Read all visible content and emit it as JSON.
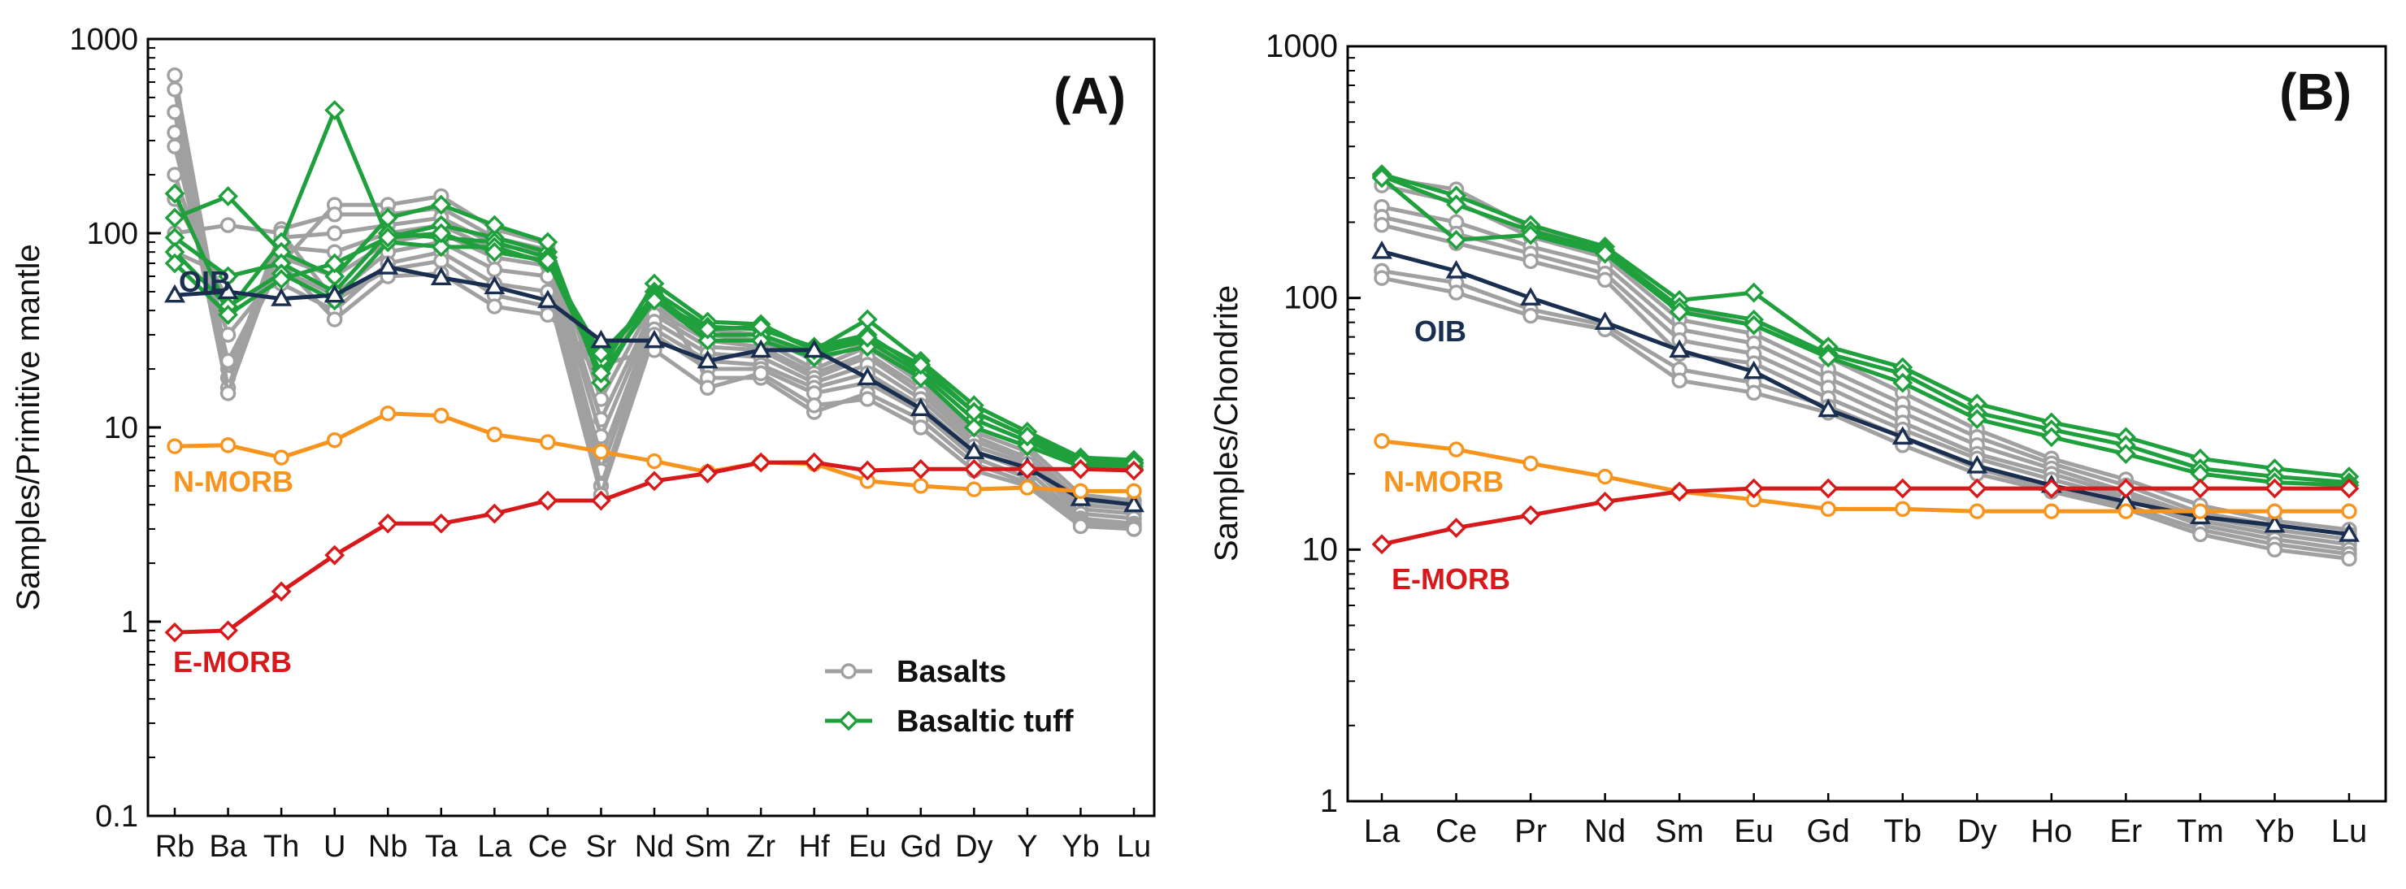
{
  "chart_data": [
    {
      "type": "line",
      "panel_label": "(A)",
      "ylabel": "Samples/Primitive mantle",
      "yscale": "log",
      "ylim": [
        0.1,
        1000
      ],
      "ytick_labels": [
        "0.1",
        "1",
        "10",
        "100",
        "1000"
      ],
      "categories": [
        "Rb",
        "Ba",
        "Th",
        "U",
        "Nb",
        "Ta",
        "La",
        "Ce",
        "Sr",
        "Nd",
        "Sm",
        "Zr",
        "Hf",
        "Eu",
        "Gd",
        "Dy",
        "Y",
        "Yb",
        "Lu"
      ],
      "reference_series": [
        {
          "name": "OIB",
          "label": "OIB",
          "color": "#1a2e50",
          "marker": "triangle",
          "values": [
            48,
            50,
            46,
            48,
            67,
            59,
            53,
            45,
            28,
            28,
            22,
            25,
            25,
            18,
            12.5,
            7.5,
            6.2,
            4.3,
            4.0
          ]
        },
        {
          "name": "N-MORB",
          "label": "N-MORB",
          "color": "#f7941d",
          "marker": "circle",
          "values": [
            8.0,
            8.1,
            7.0,
            8.6,
            11.8,
            11.5,
            9.2,
            8.4,
            7.5,
            6.7,
            5.9,
            6.6,
            6.5,
            5.3,
            5.0,
            4.8,
            4.9,
            4.7,
            4.7
          ]
        },
        {
          "name": "E-MORB",
          "label": "E-MORB",
          "color": "#d7191c",
          "marker": "diamond",
          "values": [
            0.88,
            0.9,
            1.43,
            2.2,
            3.2,
            3.2,
            3.6,
            4.2,
            4.2,
            5.3,
            5.8,
            6.6,
            6.6,
            6.0,
            6.1,
            6.1,
            6.1,
            6.1,
            6.0
          ]
        }
      ],
      "sample_groups": [
        {
          "name": "Basalts",
          "color": "#a0a0a0",
          "marker": "circle",
          "series": [
            [
              650,
              20,
              70,
              140,
              140,
              155,
              105,
              88,
              14,
              45,
              32,
              30,
              22,
              27,
              18,
              10,
              8,
              4.5,
              4.2
            ],
            [
              550,
              18,
              105,
              125,
              125,
              135,
              95,
              82,
              11,
              42,
              30,
              28,
              20,
              26,
              17,
              9.5,
              7.5,
              4.2,
              4.0
            ],
            [
              420,
              16,
              95,
              100,
              110,
              120,
              88,
              78,
              9,
              40,
              28,
              26,
              19,
              24,
              16,
              9,
              7,
              4.0,
              3.8
            ],
            [
              330,
              15,
              85,
              80,
              100,
              110,
              82,
              72,
              7,
              38,
              26,
              25,
              18,
              23,
              15,
              8.5,
              6.8,
              3.8,
              3.6
            ],
            [
              280,
              22,
              75,
              60,
              90,
              100,
              75,
              68,
              6,
              35,
              24,
              23,
              17,
              21,
              14,
              8,
              6.5,
              3.6,
              3.4
            ],
            [
              200,
              30,
              65,
              48,
              80,
              90,
              65,
              60,
              5,
              32,
              22,
              21,
              16,
              19,
              13,
              7.5,
              6,
              3.4,
              3.2
            ],
            [
              150,
              45,
              55,
              40,
              70,
              80,
              55,
              50,
              4.5,
              30,
              20,
              20,
              15,
              17,
              12,
              7,
              5.5,
              3.3,
              3.1
            ],
            [
              100,
              110,
              100,
              45,
              65,
              72,
              48,
              42,
              18,
              50,
              18,
              18,
              12,
              15,
              11,
              6.5,
              5.2,
              3.2,
              3.0
            ],
            [
              80,
              60,
              70,
              36,
              60,
              62,
              42,
              38,
              21,
              25,
              16,
              19,
              13,
              14,
              10,
              6,
              5,
              3.1,
              3.0
            ]
          ]
        },
        {
          "name": "Basaltic tuff",
          "color": "#1fa03c",
          "marker": "diamond",
          "series": [
            [
              160,
              40,
              90,
              430,
              95,
              110,
              95,
              80,
              20,
              55,
              35,
              34,
              25,
              36,
              22,
              13,
              9.5,
              7,
              6.8
            ],
            [
              120,
              155,
              80,
              60,
              120,
              140,
              110,
              90,
              17,
              50,
              33,
              32,
              26,
              30,
              20,
              12,
              9,
              6.8,
              6.6
            ],
            [
              95,
              60,
              70,
              50,
              100,
              95,
              90,
              75,
              22,
              48,
              30,
              30,
              24,
              28,
              19,
              11,
              8.5,
              6.5,
              6.3
            ],
            [
              80,
              42,
              62,
              45,
              90,
              85,
              85,
              70,
              24,
              46,
              28,
              28,
              23,
              26,
              18,
              10,
              8,
              6.3,
              6.1
            ],
            [
              70,
              38,
              58,
              70,
              95,
              100,
              80,
              72,
              19,
              45,
              32,
              33,
              25,
              29,
              21,
              12,
              9,
              6.6,
              6.5
            ]
          ]
        }
      ],
      "legend": {
        "position": "bottom-right",
        "entries": [
          "Basalts",
          "Basaltic tuff"
        ]
      }
    },
    {
      "type": "line",
      "panel_label": "(B)",
      "ylabel": "Samples/Chondrite",
      "yscale": "log",
      "ylim": [
        1,
        1000
      ],
      "ytick_labels": [
        "1",
        "10",
        "100",
        "1000"
      ],
      "categories": [
        "La",
        "Ce",
        "Pr",
        "Nd",
        "Sm",
        "Eu",
        "Gd",
        "Tb",
        "Dy",
        "Ho",
        "Er",
        "Tm",
        "Yb",
        "Lu"
      ],
      "reference_series": [
        {
          "name": "OIB",
          "label": "OIB",
          "color": "#1a2e50",
          "marker": "triangle",
          "values": [
            153,
            128,
            100,
            80,
            62,
            51,
            36,
            28,
            21.5,
            18,
            15.5,
            13.5,
            12.5,
            11.5
          ]
        },
        {
          "name": "N-MORB",
          "label": "N-MORB",
          "color": "#f7941d",
          "marker": "circle",
          "values": [
            27,
            25,
            22,
            19.5,
            17,
            15.8,
            14.5,
            14.5,
            14.2,
            14.2,
            14.2,
            14.2,
            14.2,
            14.2
          ]
        },
        {
          "name": "E-MORB",
          "label": "E-MORB",
          "color": "#d7191c",
          "marker": "diamond",
          "values": [
            10.5,
            12.2,
            13.7,
            15.5,
            17,
            17.5,
            17.5,
            17.5,
            17.5,
            17.5,
            17.5,
            17.5,
            17.5,
            17.5
          ]
        }
      ],
      "sample_groups": [
        {
          "name": "Basalts",
          "color": "#a0a0a0",
          "marker": "circle",
          "series": [
            [
              300,
              270,
              190,
              155,
              90,
              78,
              58,
              42,
              30,
              23,
              19,
              15,
              13,
              12
            ],
            [
              280,
              240,
              175,
              145,
              82,
              72,
              52,
              38,
              28,
              22,
              18,
              14,
              12.5,
              11.5
            ],
            [
              230,
              200,
              160,
              135,
              75,
              66,
              48,
              35,
              26,
              21,
              17,
              13.5,
              12,
              11
            ],
            [
              210,
              180,
              150,
              125,
              68,
              60,
              44,
              32,
              24,
              20,
              16.5,
              13,
              11.5,
              10.5
            ],
            [
              195,
              165,
              140,
              118,
              60,
              55,
              40,
              30,
              23,
              19,
              16,
              12.5,
              11,
              10
            ],
            [
              128,
              115,
              90,
              78,
              52,
              46,
              37,
              28,
              21,
              17.5,
              15,
              12,
              10.5,
              9.6
            ],
            [
              120,
              105,
              85,
              75,
              47,
              42,
              35,
              26,
              20,
              17,
              14.5,
              11.5,
              10,
              9.2
            ]
          ]
        },
        {
          "name": "Basaltic tuff",
          "color": "#1fa03c",
          "marker": "diamond",
          "series": [
            [
              310,
              255,
              195,
              160,
              98,
              105,
              64,
              53,
              38,
              32,
              28,
              23,
              21,
              19.5
            ],
            [
              305,
              235,
              185,
              155,
              92,
              82,
              60,
              50,
              35,
              30,
              26,
              21,
              19.5,
              18.5
            ],
            [
              300,
              170,
              178,
              150,
              88,
              78,
              58,
              46,
              33,
              28,
              24,
              20,
              18.5,
              18
            ]
          ]
        }
      ]
    }
  ]
}
